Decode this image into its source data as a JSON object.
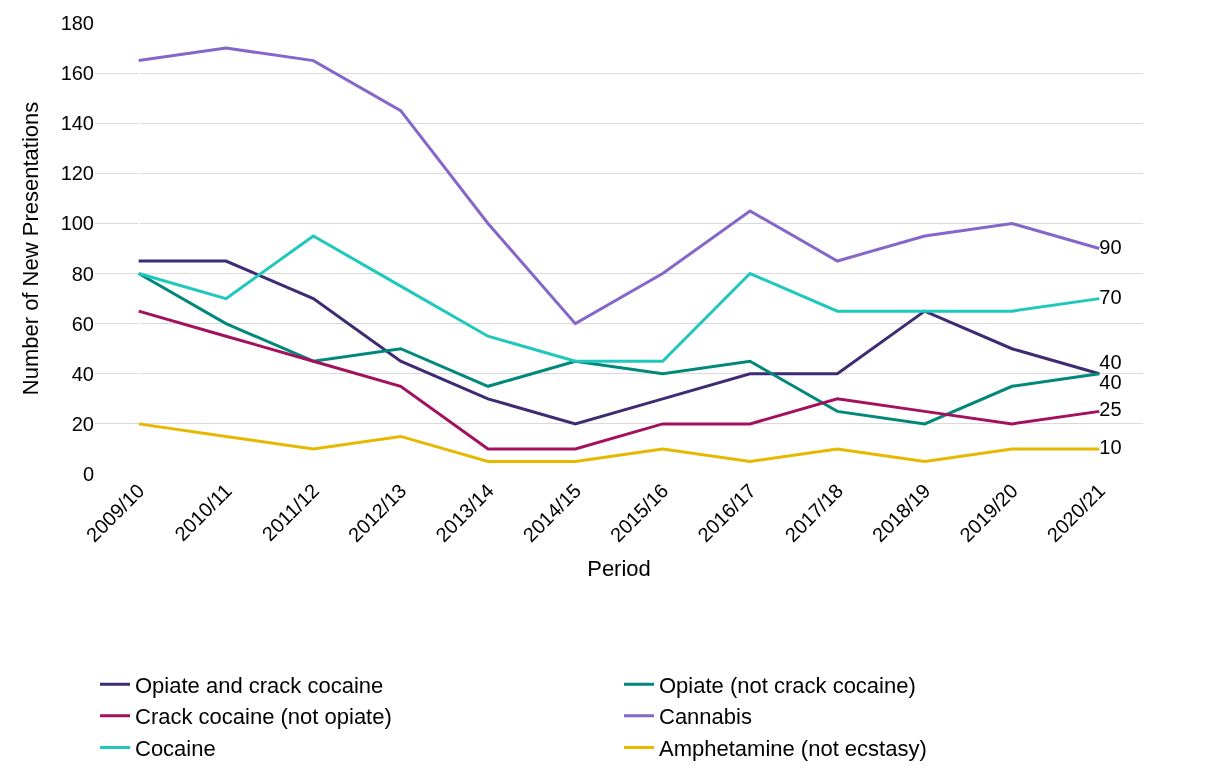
{
  "chart_data": {
    "type": "line",
    "xlabel": "Period",
    "ylabel": "Number of New Presentations",
    "categories": [
      "2009/10",
      "2010/11",
      "2011/12",
      "2012/13",
      "2013/14",
      "2014/15",
      "2015/16",
      "2016/17",
      "2017/18",
      "2018/19",
      "2019/20",
      "2020/21"
    ],
    "series": [
      {
        "name": "Opiate and crack cocaine",
        "color": "#3d2b73",
        "values": [
          85,
          85,
          70,
          45,
          30,
          20,
          30,
          40,
          40,
          65,
          50,
          40
        ],
        "value_labels": [
          null,
          null,
          null,
          null,
          null,
          null,
          null,
          null,
          null,
          null,
          null,
          "40"
        ]
      },
      {
        "name": "Opiate (not crack cocaine)",
        "color": "#00897b",
        "values": [
          80,
          60,
          45,
          50,
          35,
          45,
          40,
          45,
          25,
          20,
          35,
          40
        ],
        "value_labels": [
          null,
          null,
          null,
          null,
          null,
          null,
          null,
          null,
          null,
          null,
          null,
          "40"
        ]
      },
      {
        "name": "Crack cocaine (not opiate)",
        "color": "#a3115e",
        "values": [
          65,
          55,
          45,
          35,
          10,
          10,
          20,
          20,
          30,
          25,
          20,
          25
        ],
        "value_labels": [
          null,
          null,
          null,
          null,
          null,
          null,
          null,
          null,
          null,
          null,
          null,
          "25"
        ]
      },
      {
        "name": "Cannabis",
        "color": "#8566c9",
        "values": [
          165,
          170,
          165,
          145,
          100,
          60,
          80,
          105,
          85,
          95,
          100,
          90
        ],
        "value_labels": [
          null,
          null,
          null,
          null,
          null,
          null,
          null,
          null,
          null,
          null,
          null,
          "90"
        ]
      },
      {
        "name": "Cocaine",
        "color": "#1ec8bd",
        "values": [
          80,
          70,
          95,
          75,
          55,
          45,
          45,
          80,
          65,
          65,
          65,
          70
        ],
        "value_labels": [
          null,
          null,
          null,
          null,
          null,
          null,
          null,
          null,
          null,
          null,
          null,
          "70"
        ]
      },
      {
        "name": "Amphetamine (not ecstasy)",
        "color": "#e6b800",
        "values": [
          20,
          15,
          10,
          15,
          5,
          5,
          10,
          5,
          10,
          5,
          10,
          10
        ],
        "value_labels": [
          null,
          null,
          null,
          null,
          null,
          null,
          null,
          null,
          null,
          null,
          null,
          "10"
        ]
      }
    ],
    "ylim": [
      0,
      180
    ],
    "yticks": [
      0,
      20,
      40,
      60,
      80,
      100,
      120,
      140,
      160,
      180
    ],
    "grid": "y",
    "legend": "bottom",
    "marker": "none",
    "line_style": "solid"
  }
}
